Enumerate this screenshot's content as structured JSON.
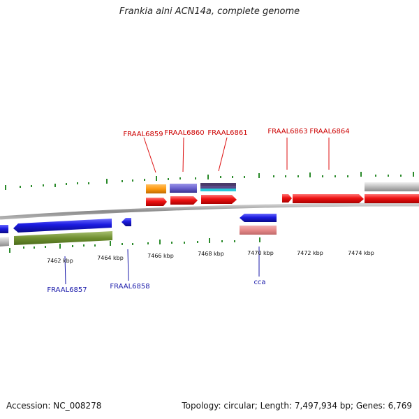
{
  "title": "Frankia alni ACN14a, complete genome",
  "footer": {
    "accession": "Accession: NC_008278",
    "topology": "Topology: circular; Length: 7,497,934 bp; Genes: 6,769"
  },
  "scale_labels": [
    "7462 kbp",
    "7464 kbp",
    "7466 kbp",
    "7468 kbp",
    "7470 kbp",
    "7472 kbp",
    "7474 kbp"
  ],
  "gene_labels_top": [
    "FRAAL6859",
    "FRAAL6860",
    "FRAAL6861",
    "FRAAL6863",
    "FRAAL6864"
  ],
  "gene_labels_bottom": [
    "FRAAL6857",
    "FRAAL6858",
    "cca"
  ],
  "colors": {
    "forward_gene": "#ee1111",
    "reverse_gene": "#1a1adf",
    "label_forward": "#cc0000",
    "label_reverse": "#1a1aaa",
    "backbone": "#8a8a8a",
    "tick": "#2a8a2a"
  }
}
